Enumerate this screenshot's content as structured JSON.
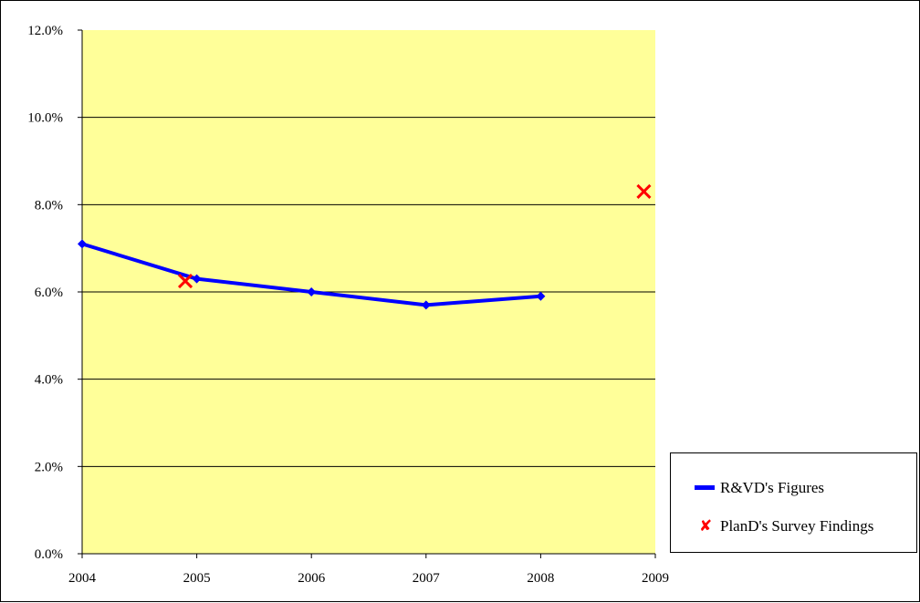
{
  "chart_data": {
    "type": "line",
    "title": "",
    "xlabel": "",
    "ylabel": "",
    "x": [
      2004,
      2005,
      2006,
      2007,
      2008,
      2009
    ],
    "x_tick_labels": [
      "2004",
      "2005",
      "2006",
      "2007",
      "2008",
      "2009"
    ],
    "ylim": [
      0,
      12
    ],
    "y_tick_labels": [
      "0.0%",
      "2.0%",
      "4.0%",
      "6.0%",
      "8.0%",
      "10.0%",
      "12.0%"
    ],
    "y_ticks": [
      0,
      2,
      4,
      6,
      8,
      10,
      12
    ],
    "grid": "horizontal",
    "plot_background": "#FFFF99",
    "series": [
      {
        "name": "R&VD's Figures",
        "style": "line-with-diamond-markers",
        "color": "#0000FF",
        "points": [
          {
            "x": 2004,
            "y": 7.1
          },
          {
            "x": 2005,
            "y": 6.3
          },
          {
            "x": 2006,
            "y": 6.0
          },
          {
            "x": 2007,
            "y": 5.7
          },
          {
            "x": 2008,
            "y": 5.9
          }
        ]
      },
      {
        "name": "PlanD's Survey Findings",
        "style": "x-markers",
        "color": "#FF0000",
        "points": [
          {
            "x": 2004.9,
            "y": 6.25
          },
          {
            "x": 2008.9,
            "y": 8.3
          }
        ]
      }
    ],
    "legend_position": "bottom-right"
  },
  "legend": {
    "items": [
      {
        "label": "R&VD's Figures",
        "color": "#0000FF",
        "icon": "line-swatch"
      },
      {
        "label": "PlanD's Survey Findings",
        "color": "#FF0000",
        "icon": "x-marker",
        "glyph": "✘"
      }
    ]
  }
}
